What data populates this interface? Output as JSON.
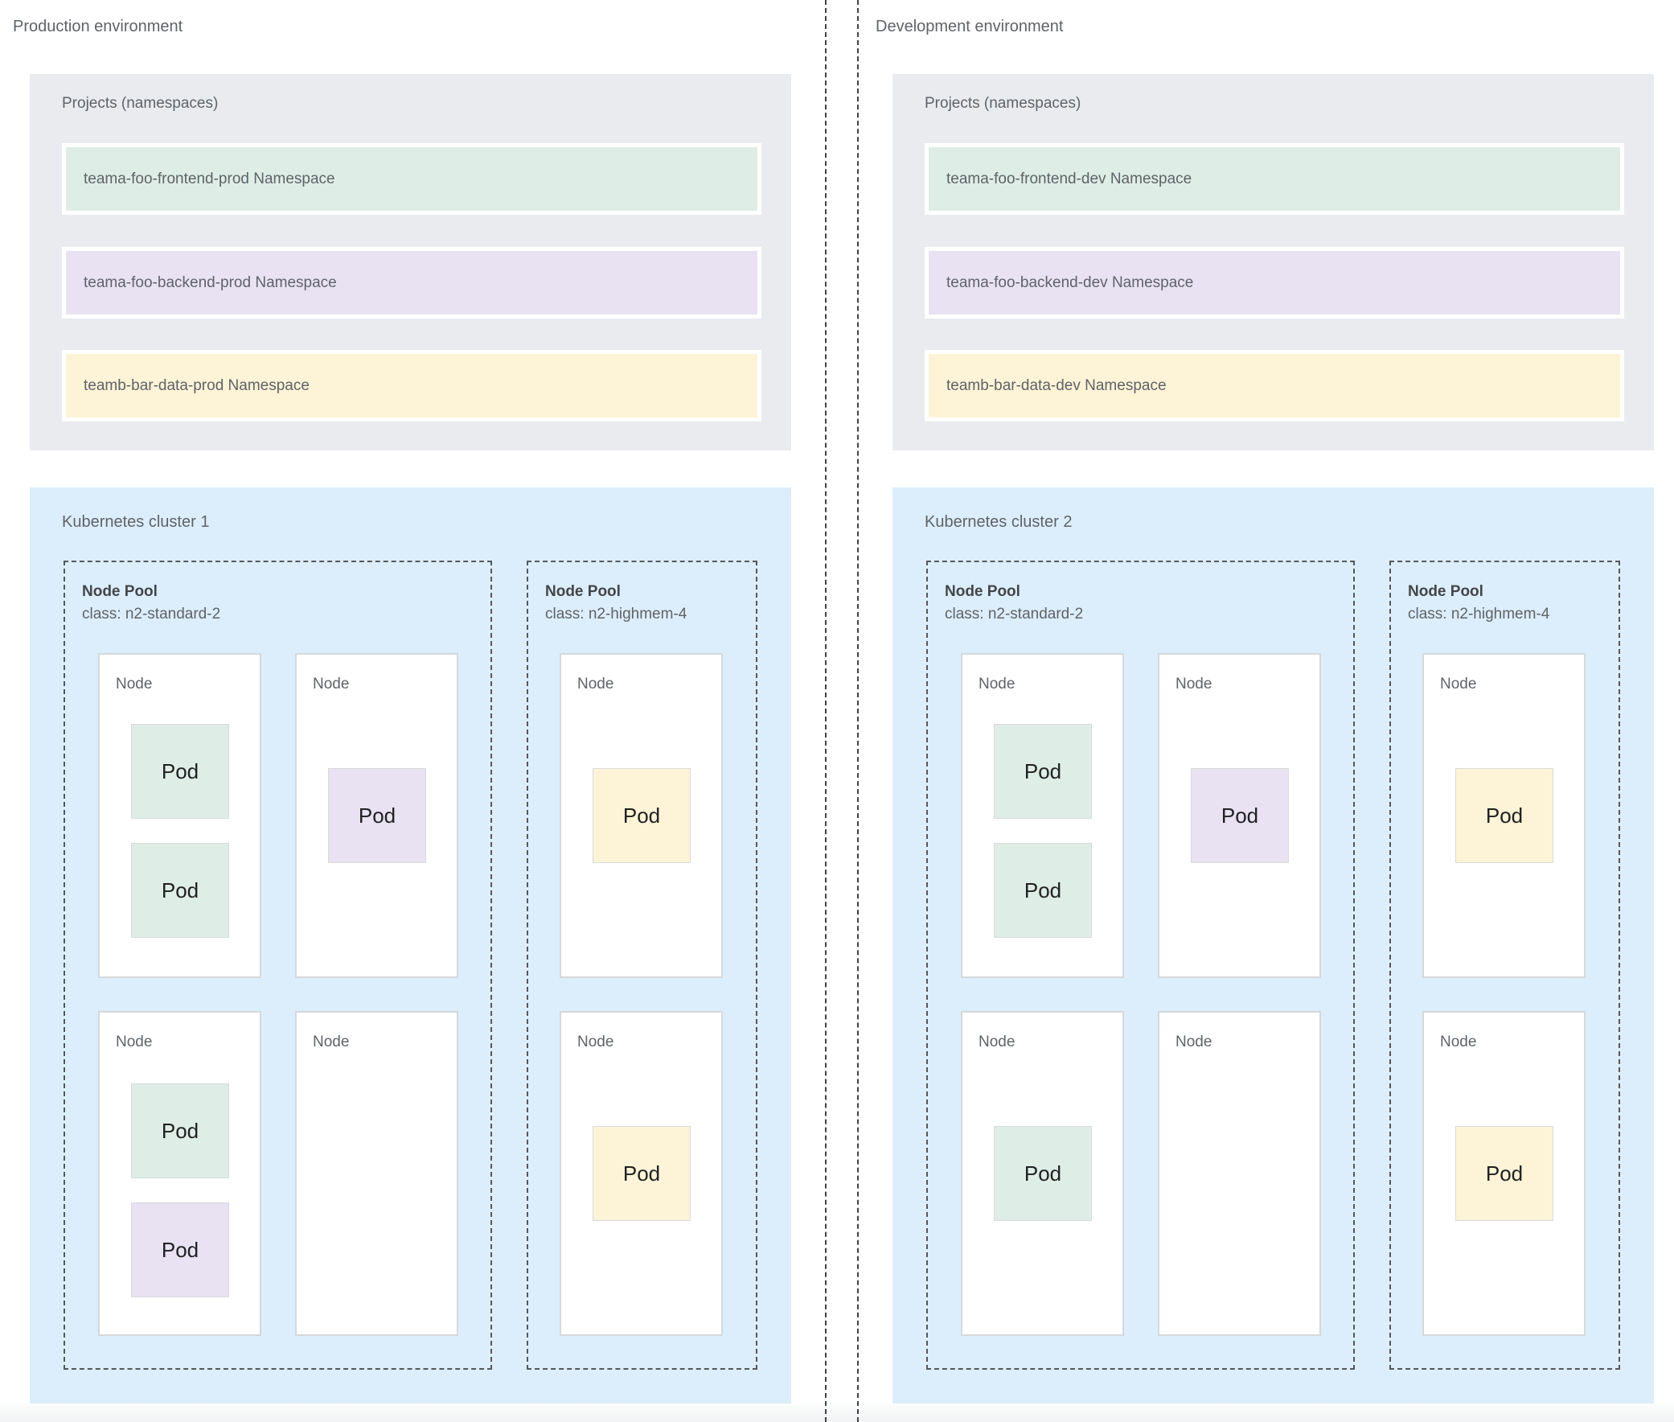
{
  "colors": {
    "green": "#deede5",
    "purple": "#e8e2f3",
    "yellow": "#fdf3d6",
    "projects_bg": "#e9ebee",
    "cluster_bg": "#dceefb"
  },
  "environments": [
    {
      "title": "Production environment",
      "projects": {
        "label": "Projects (namespaces)",
        "namespaces": [
          {
            "label": "teama-foo-frontend-prod Namespace",
            "color": "green"
          },
          {
            "label": "teama-foo-backend-prod Namespace",
            "color": "purple"
          },
          {
            "label": "teamb-bar-data-prod Namespace",
            "color": "yellow"
          }
        ]
      },
      "cluster": {
        "label": "Kubernetes cluster 1",
        "node_pools": [
          {
            "name": "Node Pool",
            "machine_class": "class: n2-standard-2",
            "nodes": [
              {
                "label": "Node",
                "pods": [
                  {
                    "label": "Pod",
                    "color": "green"
                  },
                  {
                    "label": "Pod",
                    "color": "green"
                  }
                ]
              },
              {
                "label": "Node",
                "pods": [
                  {
                    "label": "Pod",
                    "color": "purple"
                  }
                ]
              },
              {
                "label": "Node",
                "pods": [
                  {
                    "label": "Pod",
                    "color": "green"
                  },
                  {
                    "label": "Pod",
                    "color": "purple"
                  }
                ]
              },
              {
                "label": "Node",
                "pods": []
              }
            ]
          },
          {
            "name": "Node Pool",
            "machine_class": "class: n2-highmem-4",
            "nodes": [
              {
                "label": "Node",
                "pods": [
                  {
                    "label": "Pod",
                    "color": "yellow"
                  }
                ]
              },
              {
                "label": "Node",
                "pods": [
                  {
                    "label": "Pod",
                    "color": "yellow"
                  }
                ]
              }
            ]
          }
        ]
      }
    },
    {
      "title": "Development environment",
      "projects": {
        "label": "Projects (namespaces)",
        "namespaces": [
          {
            "label": "teama-foo-frontend-dev Namespace",
            "color": "green"
          },
          {
            "label": "teama-foo-backend-dev Namespace",
            "color": "purple"
          },
          {
            "label": "teamb-bar-data-dev Namespace",
            "color": "yellow"
          }
        ]
      },
      "cluster": {
        "label": "Kubernetes cluster 2",
        "node_pools": [
          {
            "name": "Node Pool",
            "machine_class": "class: n2-standard-2",
            "nodes": [
              {
                "label": "Node",
                "pods": [
                  {
                    "label": "Pod",
                    "color": "green"
                  },
                  {
                    "label": "Pod",
                    "color": "green"
                  }
                ]
              },
              {
                "label": "Node",
                "pods": [
                  {
                    "label": "Pod",
                    "color": "purple"
                  }
                ]
              },
              {
                "label": "Node",
                "pods": [
                  {
                    "label": "Pod",
                    "color": "green"
                  }
                ]
              },
              {
                "label": "Node",
                "pods": []
              }
            ]
          },
          {
            "name": "Node Pool",
            "machine_class": "class: n2-highmem-4",
            "nodes": [
              {
                "label": "Node",
                "pods": [
                  {
                    "label": "Pod",
                    "color": "yellow"
                  }
                ]
              },
              {
                "label": "Node",
                "pods": [
                  {
                    "label": "Pod",
                    "color": "yellow"
                  }
                ]
              }
            ]
          }
        ]
      }
    }
  ]
}
